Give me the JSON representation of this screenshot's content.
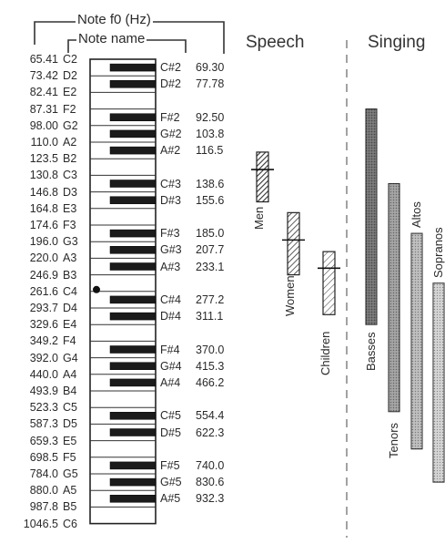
{
  "header": {
    "f0_label": "Note f0 (Hz)",
    "name_label": "Note name"
  },
  "sections": {
    "speech": "Speech",
    "singing": "Singing"
  },
  "white_keys": [
    {
      "name": "C2",
      "f0": "65.41"
    },
    {
      "name": "D2",
      "f0": "73.42"
    },
    {
      "name": "E2",
      "f0": "82.41"
    },
    {
      "name": "F2",
      "f0": "87.31"
    },
    {
      "name": "G2",
      "f0": "98.00"
    },
    {
      "name": "A2",
      "f0": "110.0"
    },
    {
      "name": "B2",
      "f0": "123.5"
    },
    {
      "name": "C3",
      "f0": "130.8"
    },
    {
      "name": "D3",
      "f0": "146.8"
    },
    {
      "name": "E3",
      "f0": "164.8"
    },
    {
      "name": "F3",
      "f0": "174.6"
    },
    {
      "name": "G3",
      "f0": "196.0"
    },
    {
      "name": "A3",
      "f0": "220.0"
    },
    {
      "name": "B3",
      "f0": "246.9"
    },
    {
      "name": "C4",
      "f0": "261.6"
    },
    {
      "name": "D4",
      "f0": "293.7"
    },
    {
      "name": "E4",
      "f0": "329.6"
    },
    {
      "name": "F4",
      "f0": "349.2"
    },
    {
      "name": "G4",
      "f0": "392.0"
    },
    {
      "name": "A4",
      "f0": "440.0"
    },
    {
      "name": "B4",
      "f0": "493.9"
    },
    {
      "name": "C5",
      "f0": "523.3"
    },
    {
      "name": "D5",
      "f0": "587.3"
    },
    {
      "name": "E5",
      "f0": "659.3"
    },
    {
      "name": "F5",
      "f0": "698.5"
    },
    {
      "name": "G5",
      "f0": "784.0"
    },
    {
      "name": "A5",
      "f0": "880.0"
    },
    {
      "name": "B5",
      "f0": "987.8"
    },
    {
      "name": "C6",
      "f0": "1046.5"
    }
  ],
  "black_keys": [
    {
      "name": "C#2",
      "f0": "69.30"
    },
    {
      "name": "D#2",
      "f0": "77.78"
    },
    {
      "name": "F#2",
      "f0": "92.50"
    },
    {
      "name": "G#2",
      "f0": "103.8"
    },
    {
      "name": "A#2",
      "f0": "116.5"
    },
    {
      "name": "C#3",
      "f0": "138.6"
    },
    {
      "name": "D#3",
      "f0": "155.6"
    },
    {
      "name": "F#3",
      "f0": "185.0"
    },
    {
      "name": "G#3",
      "f0": "207.7"
    },
    {
      "name": "A#3",
      "f0": "233.1"
    },
    {
      "name": "C#4",
      "f0": "277.2"
    },
    {
      "name": "D#4",
      "f0": "311.1"
    },
    {
      "name": "F#4",
      "f0": "370.0"
    },
    {
      "name": "G#4",
      "f0": "415.3"
    },
    {
      "name": "A#4",
      "f0": "466.2"
    },
    {
      "name": "C#5",
      "f0": "554.4"
    },
    {
      "name": "D#5",
      "f0": "622.3"
    },
    {
      "name": "F#5",
      "f0": "740.0"
    },
    {
      "name": "G#5",
      "f0": "830.6"
    },
    {
      "name": "A#5",
      "f0": "932.3"
    }
  ],
  "middle_c_marker": "C4",
  "speech_ranges": [
    {
      "label": "Men",
      "low_key": 11.2,
      "high_key": 17.2,
      "mean_key": 13.3,
      "fill": "hatch-dense"
    },
    {
      "label": "Women",
      "low_key": 18.5,
      "high_key": 26.0,
      "mean_key": 21.8,
      "fill": "hatch-medium"
    },
    {
      "label": "Children",
      "low_key": 23.2,
      "high_key": 30.8,
      "mean_key": 25.2,
      "fill": "hatch-light"
    }
  ],
  "singing_ranges": [
    {
      "label": "Basses",
      "low_key": 6.0,
      "high_key": 32.0,
      "fill": "dark-stipple",
      "color": "#6e6e6e"
    },
    {
      "label": "Tenors",
      "low_key": 15.0,
      "high_key": 42.5,
      "fill": "mid-stipple",
      "color": "#9b9b9b"
    },
    {
      "label": "Altos",
      "low_key": 21.0,
      "high_key": 47.0,
      "fill": "light-stipple",
      "color": "#b8b8b8"
    },
    {
      "label": "Sopranos",
      "low_key": 27.0,
      "high_key": 51.0,
      "fill": "lightest-stipple",
      "color": "#cfcfcf"
    }
  ]
}
